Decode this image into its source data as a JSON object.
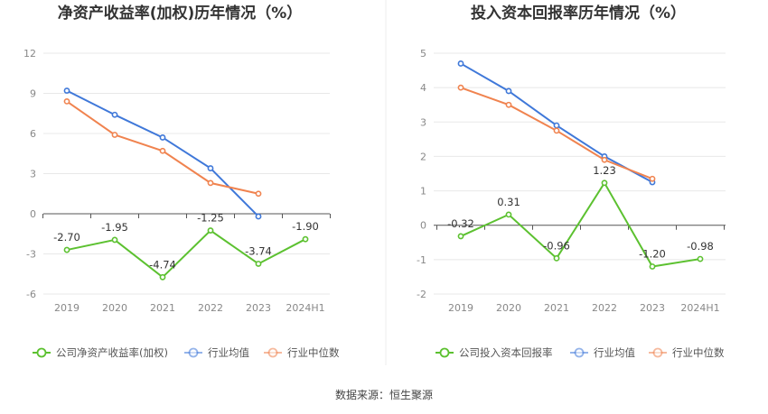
{
  "chart_data": [
    {
      "type": "line",
      "title": "净资产收益率(加权)历年情况（%）",
      "categories": [
        "2019",
        "2020",
        "2021",
        "2022",
        "2023",
        "2024H1"
      ],
      "yticks": [
        "12",
        "9",
        "6",
        "3",
        "0",
        "-3",
        "-6"
      ],
      "ylim": [
        -6,
        12
      ],
      "series": [
        {
          "name": "公司净资产收益率(加权)",
          "color": "#5cc130",
          "values": [
            -2.7,
            -1.95,
            -4.74,
            -1.25,
            -3.74,
            -1.9
          ],
          "labels": [
            "-2.70",
            "-1.95",
            "-4.74",
            "-1.25",
            "-3.74",
            "-1.90"
          ]
        },
        {
          "name": "行业均值",
          "color": "#3f78d9",
          "values": [
            9.2,
            7.4,
            5.7,
            3.4,
            -0.2,
            null
          ]
        },
        {
          "name": "行业中位数",
          "color": "#f0834f",
          "values": [
            8.4,
            5.9,
            4.7,
            2.3,
            1.5,
            null
          ]
        }
      ]
    },
    {
      "type": "line",
      "title": "投入资本回报率历年情况（%）",
      "categories": [
        "2019",
        "2020",
        "2021",
        "2022",
        "2023",
        "2024H1"
      ],
      "yticks": [
        "5",
        "4",
        "3",
        "2",
        "1",
        "0",
        "-1",
        "-2"
      ],
      "ylim": [
        -2,
        5
      ],
      "series": [
        {
          "name": "公司投入资本回报率",
          "color": "#5cc130",
          "values": [
            -0.32,
            0.31,
            -0.96,
            1.23,
            -1.2,
            -0.98
          ],
          "labels": [
            "-0.32",
            "0.31",
            "-0.96",
            "1.23",
            "-1.20",
            "-0.98"
          ]
        },
        {
          "name": "行业均值",
          "color": "#3f78d9",
          "values": [
            4.7,
            3.9,
            2.9,
            2.0,
            1.25,
            null
          ]
        },
        {
          "name": "行业中位数",
          "color": "#f0834f",
          "values": [
            4.0,
            3.5,
            2.75,
            1.9,
            1.35,
            null
          ]
        }
      ]
    }
  ],
  "source": "数据来源：恒生聚源"
}
